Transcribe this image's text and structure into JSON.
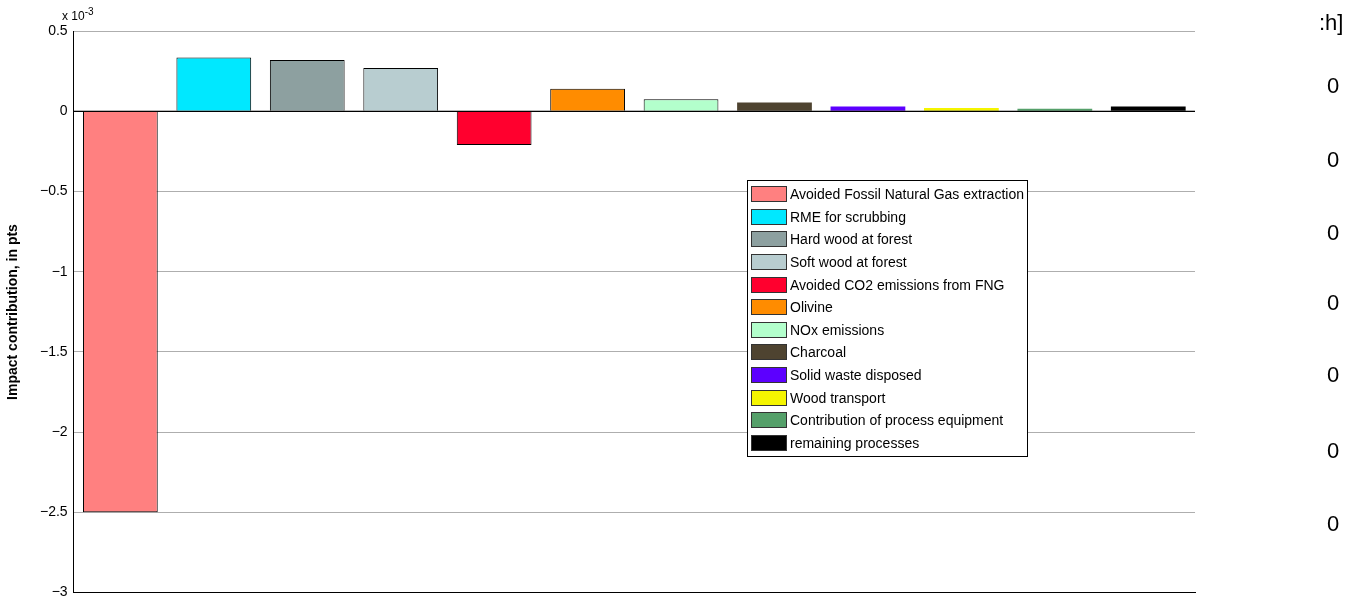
{
  "chart_data": {
    "type": "bar",
    "ylabel": "Impact contribution, in pts",
    "categories": [
      null,
      null,
      null,
      null,
      null,
      null,
      null,
      null,
      null,
      null,
      null,
      null
    ],
    "series": [
      {
        "name": "Avoided Fossil Natural Gas extraction",
        "color": "#ff8080",
        "values": [
          -2.5,
          null,
          null,
          null,
          null,
          null,
          null,
          null,
          null,
          null,
          null,
          null
        ]
      },
      {
        "name": "RME for scrubbing",
        "color": "#00e8ff",
        "values": [
          null,
          0.335,
          null,
          null,
          null,
          null,
          null,
          null,
          null,
          null,
          null,
          null
        ]
      },
      {
        "name": "Hard wood at forest",
        "color": "#8da0a0",
        "values": [
          null,
          null,
          0.32,
          null,
          null,
          null,
          null,
          null,
          null,
          null,
          null,
          null
        ]
      },
      {
        "name": "Soft wood at forest",
        "color": "#b8cdd0",
        "values": [
          null,
          null,
          null,
          0.27,
          null,
          null,
          null,
          null,
          null,
          null,
          null,
          null
        ]
      },
      {
        "name": "Avoided CO2 emissions from FNG",
        "color": "#ff002e",
        "values": [
          null,
          null,
          null,
          null,
          -0.21,
          null,
          null,
          null,
          null,
          null,
          null,
          null
        ]
      },
      {
        "name": "Olivine",
        "color": "#ff8c00",
        "values": [
          null,
          null,
          null,
          null,
          null,
          0.14,
          null,
          null,
          null,
          null,
          null,
          null
        ]
      },
      {
        "name": "NOx emissions",
        "color": "#b3ffcc",
        "values": [
          null,
          null,
          null,
          null,
          null,
          null,
          0.075,
          null,
          null,
          null,
          null,
          null
        ]
      },
      {
        "name": "Charcoal",
        "color": "#4e4330",
        "values": [
          null,
          null,
          null,
          null,
          null,
          null,
          null,
          0.055,
          null,
          null,
          null,
          null
        ]
      },
      {
        "name": "Solid waste disposed",
        "color": "#5c00ff",
        "values": [
          null,
          null,
          null,
          null,
          null,
          null,
          null,
          null,
          0.03,
          null,
          null,
          null
        ]
      },
      {
        "name": "Wood transport",
        "color": "#f5f500",
        "values": [
          null,
          null,
          null,
          null,
          null,
          null,
          null,
          null,
          null,
          0.02,
          null,
          null
        ]
      },
      {
        "name": "Contribution of process equipment",
        "color": "#55a06a",
        "values": [
          null,
          null,
          null,
          null,
          null,
          null,
          null,
          null,
          null,
          null,
          0.015,
          null
        ]
      },
      {
        "name": "remaining processes",
        "color": "#000000",
        "values": [
          null,
          null,
          null,
          null,
          null,
          null,
          null,
          null,
          null,
          null,
          null,
          0.03
        ]
      }
    ],
    "ylim": [
      -3,
      0.5
    ],
    "yticks": [
      -3,
      -2.5,
      -2,
      -1.5,
      -1,
      -0.5,
      0,
      0.5
    ],
    "grid": "y",
    "legend": "right",
    "annotations": [
      "x 10$^{-3}$",
      ":h]",
      "0",
      "0",
      "0",
      "0",
      "0",
      "0",
      "0"
    ]
  }
}
